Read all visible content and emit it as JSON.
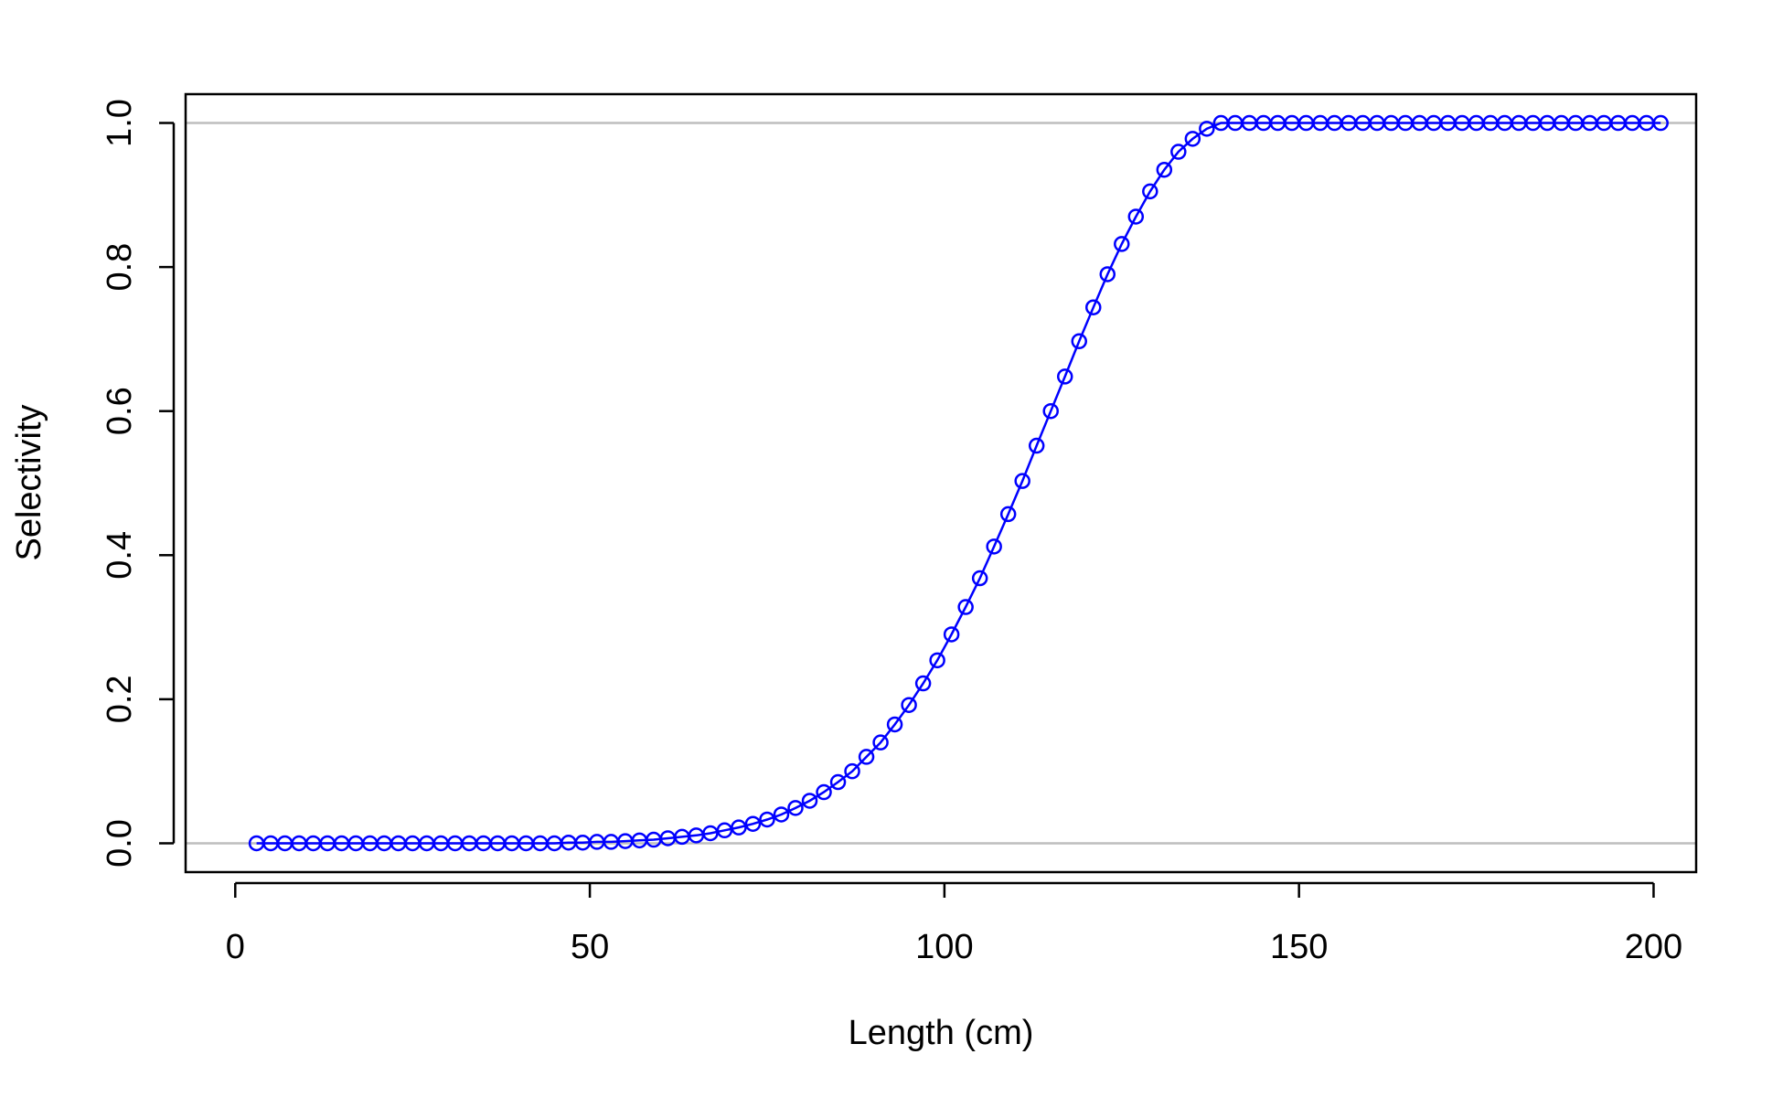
{
  "chart_data": {
    "type": "line",
    "title": "",
    "xlabel": "Length (cm)",
    "ylabel": "Selectivity",
    "xlim": [
      -7,
      206
    ],
    "ylim": [
      -0.04,
      1.04
    ],
    "x_ticks": [
      0,
      50,
      100,
      150,
      200
    ],
    "x_tick_labels": [
      "0",
      "50",
      "100",
      "150",
      "200"
    ],
    "y_ticks": [
      0.0,
      0.2,
      0.4,
      0.6,
      0.8,
      1.0
    ],
    "y_tick_labels": [
      "0.0",
      "0.2",
      "0.4",
      "0.6",
      "0.8",
      "1.0"
    ],
    "reference_lines_y": [
      0,
      1
    ],
    "reference_line_color": "#bebebe",
    "series_color": "#0000ff",
    "marker": "open-circle",
    "grid": false,
    "legend": "none",
    "series": [
      {
        "x": [
          3,
          5,
          7,
          9,
          11,
          13,
          15,
          17,
          19,
          21,
          23,
          25,
          27,
          29,
          31,
          33,
          35,
          37,
          39,
          41,
          43,
          45,
          47,
          49,
          51,
          53,
          55,
          57,
          59,
          61,
          63,
          65,
          67,
          69,
          71,
          73,
          75,
          77,
          79,
          81,
          83,
          85,
          87,
          89,
          91,
          93,
          95,
          97,
          99,
          101,
          103,
          105,
          107,
          109,
          111,
          113,
          115,
          117,
          119,
          121,
          123,
          125,
          127,
          129,
          131,
          133,
          135,
          137,
          139,
          141,
          143,
          145,
          147,
          149,
          151,
          153,
          155,
          157,
          159,
          161,
          163,
          165,
          167,
          169,
          171,
          173,
          175,
          177,
          179,
          181,
          183,
          185,
          187,
          189,
          191,
          193,
          195,
          197,
          199,
          201
        ],
        "values": [
          0.0,
          0.0,
          0.0,
          0.0,
          0.0,
          0.0,
          0.0,
          0.0,
          0.0,
          0.0,
          0.0,
          0.0,
          0.0,
          0.0,
          0.0,
          0.0,
          0.0,
          0.0,
          0.0,
          0.0,
          0.0,
          0.0,
          0.001,
          0.001,
          0.002,
          0.002,
          0.003,
          0.004,
          0.005,
          0.007,
          0.009,
          0.011,
          0.014,
          0.018,
          0.022,
          0.027,
          0.033,
          0.04,
          0.049,
          0.059,
          0.071,
          0.085,
          0.1,
          0.12,
          0.14,
          0.165,
          0.192,
          0.222,
          0.254,
          0.29,
          0.328,
          0.368,
          0.412,
          0.457,
          0.503,
          0.552,
          0.6,
          0.648,
          0.697,
          0.744,
          0.79,
          0.832,
          0.87,
          0.905,
          0.935,
          0.96,
          0.978,
          0.992,
          1.0,
          1.0,
          1.0,
          1.0,
          1.0,
          1.0,
          1.0,
          1.0,
          1.0,
          1.0,
          1.0,
          1.0,
          1.0,
          1.0,
          1.0,
          1.0,
          1.0,
          1.0,
          1.0,
          1.0,
          1.0,
          1.0,
          1.0,
          1.0,
          1.0,
          1.0,
          1.0,
          1.0,
          1.0,
          1.0,
          1.0,
          1.0
        ]
      }
    ]
  }
}
